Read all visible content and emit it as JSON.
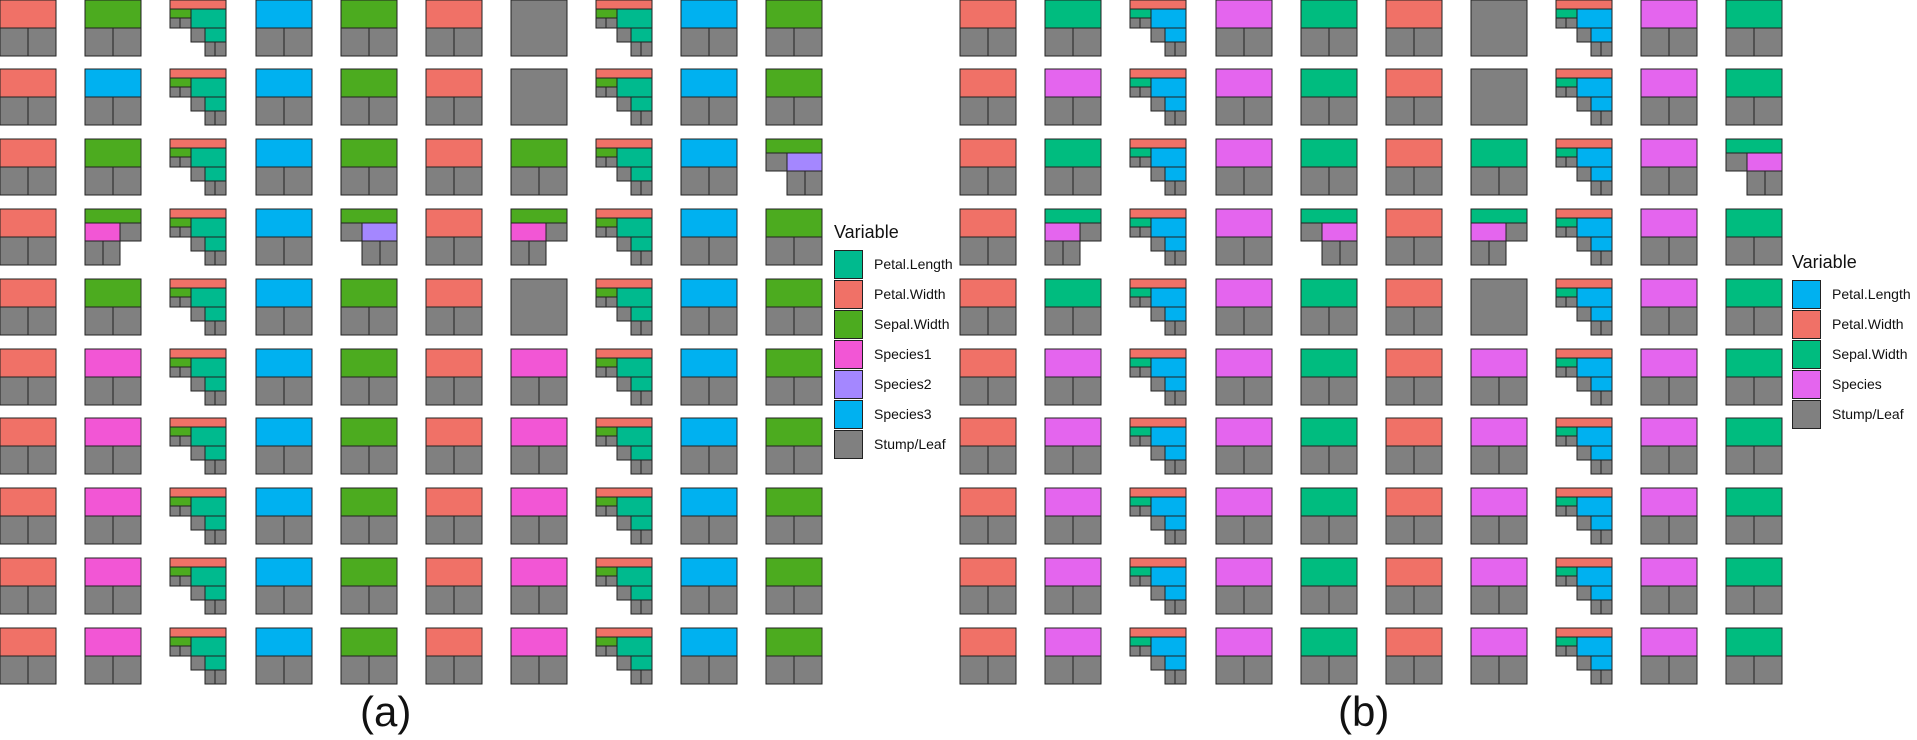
{
  "colors": {
    "petal_length_a": "#00BA8E",
    "petal_width": "#F07167",
    "sepal_width_a": "#4CAB1F",
    "species1": "#F256D5",
    "species2": "#A487FF",
    "species3": "#00B1F0",
    "stump_leaf": "#808080",
    "petal_length_b": "#00B1F0",
    "sepal_width_b": "#00BC7F",
    "species": "#E465EE"
  },
  "panel_a": {
    "label": "(a)",
    "legend": {
      "title": "Variable",
      "items": [
        {
          "label": "Petal.Length",
          "color_key": "petal_length_a"
        },
        {
          "label": "Petal.Width",
          "color_key": "petal_width"
        },
        {
          "label": "Sepal.Width",
          "color_key": "sepal_width_a"
        },
        {
          "label": "Species1",
          "color_key": "species1"
        },
        {
          "label": "Species2",
          "color_key": "species2"
        },
        {
          "label": "Species3",
          "color_key": "species3"
        },
        {
          "label": "Stump/Leaf",
          "color_key": "stump_leaf"
        }
      ]
    },
    "grid": [
      [
        "R0-PW",
        "R0-SW",
        "R2-PW-SW-PL",
        "R0-S3",
        "R0-SW",
        "R0-PW",
        "R-LEAF",
        "R2-PW-SW-PL",
        "R0-S3",
        "R0-SW"
      ],
      [
        "R0-PW",
        "R0-S3",
        "R2-PW-SW-PL",
        "R0-S3",
        "R0-SW",
        "R0-PW",
        "R-LEAF",
        "R2-PW-SW-PL",
        "R0-S3",
        "R0-SW"
      ],
      [
        "R0-PW",
        "R0-SW",
        "R2-PW-SW-PL",
        "R0-S3",
        "R0-SW",
        "R0-PW",
        "R0-SW",
        "R2-PW-SW-PL",
        "R0-S3",
        "R1R-SW-S2"
      ],
      [
        "R0-PW",
        "R1L-SW-S1",
        "R2-PW-SW-PL",
        "R0-S3",
        "R1R-SW-S2",
        "R0-PW",
        "R1L-SW-S1",
        "R2-PW-SW-PL",
        "R0-S3",
        "R0-SW"
      ],
      [
        "R0-PW",
        "R0-SW",
        "R2-PW-SW-PL",
        "R0-S3",
        "R0-SW",
        "R0-PW",
        "R-LEAF",
        "R2-PW-SW-PL",
        "R0-S3",
        "R0-SW"
      ],
      [
        "R0-PW",
        "R0-S1",
        "R2-PW-SW-PL",
        "R0-S3",
        "R0-SW",
        "R0-PW",
        "R0-S1",
        "R2-PW-SW-PL",
        "R0-S3",
        "R0-SW"
      ],
      [
        "R0-PW",
        "R0-S1",
        "R2-PW-SW-PL",
        "R0-S3",
        "R0-SW",
        "R0-PW",
        "R0-S1",
        "R2-PW-SW-PL",
        "R0-S3",
        "R0-SW"
      ],
      [
        "R0-PW",
        "R0-S1",
        "R2-PW-SW-PL",
        "R0-S3",
        "R0-SW",
        "R0-PW",
        "R0-S1",
        "R2-PW-SW-PL",
        "R0-S3",
        "R0-SW"
      ],
      [
        "R0-PW",
        "R0-S1",
        "R2-PW-SW-PL",
        "R0-S3",
        "R0-SW",
        "R0-PW",
        "R0-S1",
        "R2-PW-SW-PL",
        "R0-S3",
        "R0-SW"
      ],
      [
        "R0-PW",
        "R0-S1",
        "R2-PW-SW-PL",
        "R0-S3",
        "R0-SW",
        "R0-PW",
        "R0-S1",
        "R2-PW-SW-PL",
        "R0-S3",
        "R0-SW"
      ]
    ]
  },
  "panel_b": {
    "label": "(b)",
    "legend": {
      "title": "Variable",
      "items": [
        {
          "label": "Petal.Length",
          "color_key": "petal_length_b"
        },
        {
          "label": "Petal.Width",
          "color_key": "petal_width"
        },
        {
          "label": "Sepal.Width",
          "color_key": "sepal_width_b"
        },
        {
          "label": "Species",
          "color_key": "species"
        },
        {
          "label": "Stump/Leaf",
          "color_key": "stump_leaf"
        }
      ]
    },
    "grid": [
      [
        "R0-PW",
        "R0-SW",
        "R2-PW-SW-PL",
        "R0-SP",
        "R0-SW",
        "R0-PW",
        "R-LEAF",
        "R2-PW-SW-PL",
        "R0-SP",
        "R0-SW"
      ],
      [
        "R0-PW",
        "R0-SP",
        "R2-PW-SW-PL",
        "R0-SP",
        "R0-SW",
        "R0-PW",
        "R-LEAF",
        "R2-PW-SW-PL",
        "R0-SP",
        "R0-SW"
      ],
      [
        "R0-PW",
        "R0-SW",
        "R2-PW-SW-PL",
        "R0-SP",
        "R0-SW",
        "R0-PW",
        "R0-SW",
        "R2-PW-SW-PL",
        "R0-SP",
        "R1R-SW-SP"
      ],
      [
        "R0-PW",
        "R1L-SW-SP",
        "R2-PW-SW-PL",
        "R0-SP",
        "R1R-SW-SP",
        "R0-PW",
        "R1L-SW-SP",
        "R2-PW-SW-PL",
        "R0-SP",
        "R0-SW"
      ],
      [
        "R0-PW",
        "R0-SW",
        "R2-PW-SW-PL",
        "R0-SP",
        "R0-SW",
        "R0-PW",
        "R-LEAF",
        "R2-PW-SW-PL",
        "R0-SP",
        "R0-SW"
      ],
      [
        "R0-PW",
        "R0-SP",
        "R2-PW-SW-PL",
        "R0-SP",
        "R0-SW",
        "R0-PW",
        "R0-SP",
        "R2-PW-SW-PL",
        "R0-SP",
        "R0-SW"
      ],
      [
        "R0-PW",
        "R0-SP",
        "R2-PW-SW-PL",
        "R0-SP",
        "R0-SW",
        "R0-PW",
        "R0-SP",
        "R2-PW-SW-PL",
        "R0-SP",
        "R0-SW"
      ],
      [
        "R0-PW",
        "R0-SP",
        "R2-PW-SW-PL",
        "R0-SP",
        "R0-SW",
        "R0-PW",
        "R0-SP",
        "R2-PW-SW-PL",
        "R0-SP",
        "R0-SW"
      ],
      [
        "R0-PW",
        "R0-SP",
        "R2-PW-SW-PL",
        "R0-SP",
        "R0-SW",
        "R0-PW",
        "R0-SP",
        "R2-PW-SW-PL",
        "R0-SP",
        "R0-SW"
      ],
      [
        "R0-PW",
        "R0-SP",
        "R2-PW-SW-PL",
        "R0-SP",
        "R0-SW",
        "R0-PW",
        "R0-SP",
        "R2-PW-SW-PL",
        "R0-SP",
        "R0-SW"
      ]
    ]
  }
}
